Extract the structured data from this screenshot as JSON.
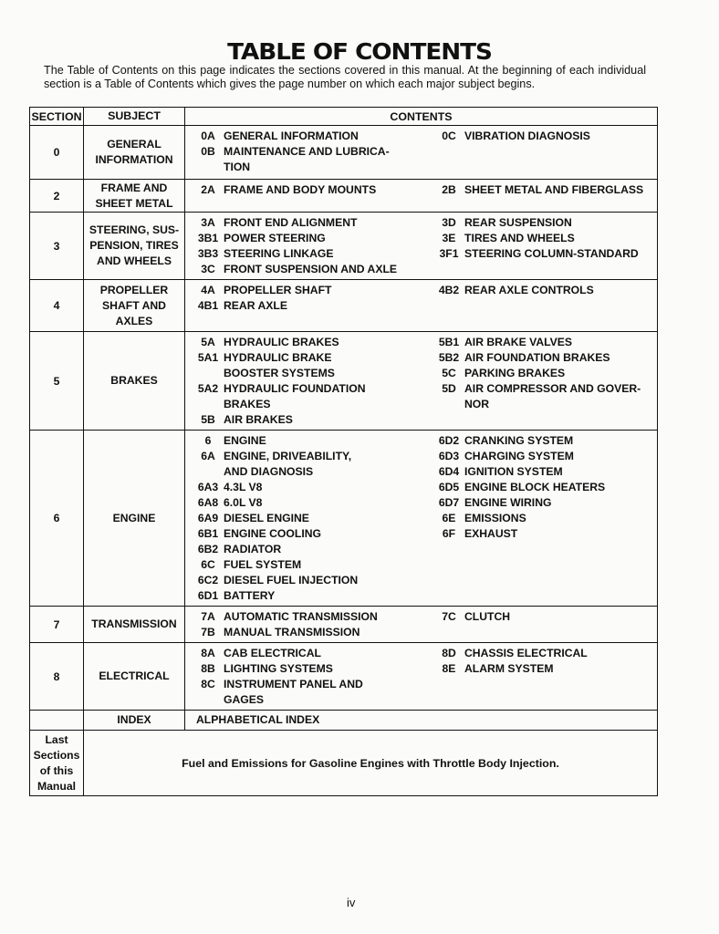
{
  "title": "TABLE OF CONTENTS",
  "intro": "The Table of Contents on this page indicates the sections covered in this manual. At the beginning of each individual section is a Table of Contents which gives the page number on which each major subject begins.",
  "headers": {
    "section": "SECTION",
    "subject": "SUBJECT",
    "contents": "CONTENTS"
  },
  "rows": [
    {
      "section": "0",
      "subject": [
        "GENERAL",
        "INFORMATION"
      ],
      "left": [
        {
          "code": "0A",
          "lines": [
            "GENERAL INFORMATION"
          ]
        },
        {
          "code": "0B",
          "lines": [
            "MAINTENANCE AND LUBRICA-",
            "TION"
          ]
        }
      ],
      "right": [
        {
          "code": "0C",
          "lines": [
            "VIBRATION DIAGNOSIS"
          ]
        }
      ]
    },
    {
      "section": "2",
      "subject": [
        "FRAME AND",
        "SHEET METAL"
      ],
      "left": [
        {
          "code": "2A",
          "lines": [
            "FRAME AND BODY MOUNTS"
          ]
        }
      ],
      "right": [
        {
          "code": "2B",
          "lines": [
            "SHEET METAL AND FIBERGLASS"
          ]
        }
      ]
    },
    {
      "section": "3",
      "subject": [
        "STEERING, SUS-",
        "PENSION, TIRES",
        "AND WHEELS"
      ],
      "left": [
        {
          "code": "3A",
          "lines": [
            "FRONT END ALIGNMENT"
          ]
        },
        {
          "code": "3B1",
          "lines": [
            "POWER STEERING"
          ]
        },
        {
          "code": "3B3",
          "lines": [
            "STEERING LINKAGE"
          ]
        },
        {
          "code": "3C",
          "lines": [
            "FRONT SUSPENSION AND AXLE"
          ]
        }
      ],
      "right": [
        {
          "code": "3D",
          "lines": [
            "REAR SUSPENSION"
          ]
        },
        {
          "code": "3E",
          "lines": [
            "TIRES AND WHEELS"
          ]
        },
        {
          "code": "3F1",
          "lines": [
            "STEERING COLUMN-STANDARD"
          ]
        }
      ]
    },
    {
      "section": "4",
      "subject": [
        "PROPELLER",
        "SHAFT AND",
        "AXLES"
      ],
      "left": [
        {
          "code": "4A",
          "lines": [
            "PROPELLER SHAFT"
          ]
        },
        {
          "code": "4B1",
          "lines": [
            "REAR AXLE"
          ]
        }
      ],
      "right": [
        {
          "code": "4B2",
          "lines": [
            "REAR AXLE CONTROLS"
          ]
        }
      ]
    },
    {
      "section": "5",
      "subject": [
        "BRAKES"
      ],
      "left": [
        {
          "code": "5A",
          "lines": [
            "HYDRAULIC BRAKES"
          ]
        },
        {
          "code": "5A1",
          "lines": [
            "HYDRAULIC BRAKE",
            "BOOSTER SYSTEMS"
          ]
        },
        {
          "code": "5A2",
          "lines": [
            "HYDRAULIC FOUNDATION",
            "BRAKES"
          ]
        },
        {
          "code": "5B",
          "lines": [
            "AIR BRAKES"
          ]
        }
      ],
      "right": [
        {
          "code": "5B1",
          "lines": [
            "AIR BRAKE VALVES"
          ]
        },
        {
          "code": "5B2",
          "lines": [
            "AIR FOUNDATION BRAKES"
          ]
        },
        {
          "code": "5C",
          "lines": [
            "PARKING BRAKES"
          ]
        },
        {
          "code": "5D",
          "lines": [
            "AIR COMPRESSOR AND GOVER-",
            "NOR"
          ]
        }
      ]
    },
    {
      "section": "6",
      "subject": [
        "ENGINE"
      ],
      "left": [
        {
          "code": "6",
          "lines": [
            "ENGINE"
          ]
        },
        {
          "code": "6A",
          "lines": [
            "ENGINE, DRIVEABILITY,",
            "AND DIAGNOSIS"
          ]
        },
        {
          "code": "6A3",
          "lines": [
            "4.3L V8"
          ]
        },
        {
          "code": "6A8",
          "lines": [
            "6.0L V8"
          ]
        },
        {
          "code": "6A9",
          "lines": [
            "DIESEL ENGINE"
          ]
        },
        {
          "code": "6B1",
          "lines": [
            "ENGINE COOLING"
          ]
        },
        {
          "code": "6B2",
          "lines": [
            "RADIATOR"
          ]
        },
        {
          "code": "6C",
          "lines": [
            "FUEL SYSTEM"
          ]
        },
        {
          "code": "6C2",
          "lines": [
            "DIESEL FUEL INJECTION"
          ]
        },
        {
          "code": "6D1",
          "lines": [
            "BATTERY"
          ]
        }
      ],
      "right": [
        {
          "code": "6D2",
          "lines": [
            "CRANKING SYSTEM"
          ]
        },
        {
          "code": "6D3",
          "lines": [
            "CHARGING SYSTEM"
          ]
        },
        {
          "code": "6D4",
          "lines": [
            "IGNITION SYSTEM"
          ]
        },
        {
          "code": "6D5",
          "lines": [
            "ENGINE BLOCK HEATERS"
          ]
        },
        {
          "code": "6D7",
          "lines": [
            "ENGINE WIRING"
          ]
        },
        {
          "code": "6E",
          "lines": [
            "EMISSIONS"
          ]
        },
        {
          "code": "6F",
          "lines": [
            "EXHAUST"
          ]
        }
      ]
    },
    {
      "section": "7",
      "subject": [
        "TRANSMISSION"
      ],
      "left": [
        {
          "code": "7A",
          "lines": [
            "AUTOMATIC TRANSMISSION"
          ]
        },
        {
          "code": "7B",
          "lines": [
            "MANUAL TRANSMISSION"
          ]
        }
      ],
      "right": [
        {
          "code": "7C",
          "lines": [
            "CLUTCH"
          ]
        }
      ]
    },
    {
      "section": "8",
      "subject": [
        "ELECTRICAL"
      ],
      "left": [
        {
          "code": "8A",
          "lines": [
            "CAB ELECTRICAL"
          ]
        },
        {
          "code": "8B",
          "lines": [
            "LIGHTING SYSTEMS"
          ]
        },
        {
          "code": "8C",
          "lines": [
            "INSTRUMENT PANEL AND",
            "GAGES"
          ]
        }
      ],
      "right": [
        {
          "code": "8D",
          "lines": [
            "CHASSIS ELECTRICAL"
          ]
        },
        {
          "code": "8E",
          "lines": [
            "ALARM SYSTEM"
          ]
        }
      ]
    },
    {
      "section": "",
      "subject": [
        "INDEX"
      ],
      "left": [
        {
          "code": "",
          "lines": [
            "ALPHABETICAL INDEX"
          ]
        }
      ],
      "right": []
    }
  ],
  "last_row": {
    "section": [
      "Last",
      "Sections",
      "of this",
      "Manual"
    ],
    "contents": "Fuel and Emissions for Gasoline Engines with Throttle Body Injection."
  },
  "page_number": "iv"
}
